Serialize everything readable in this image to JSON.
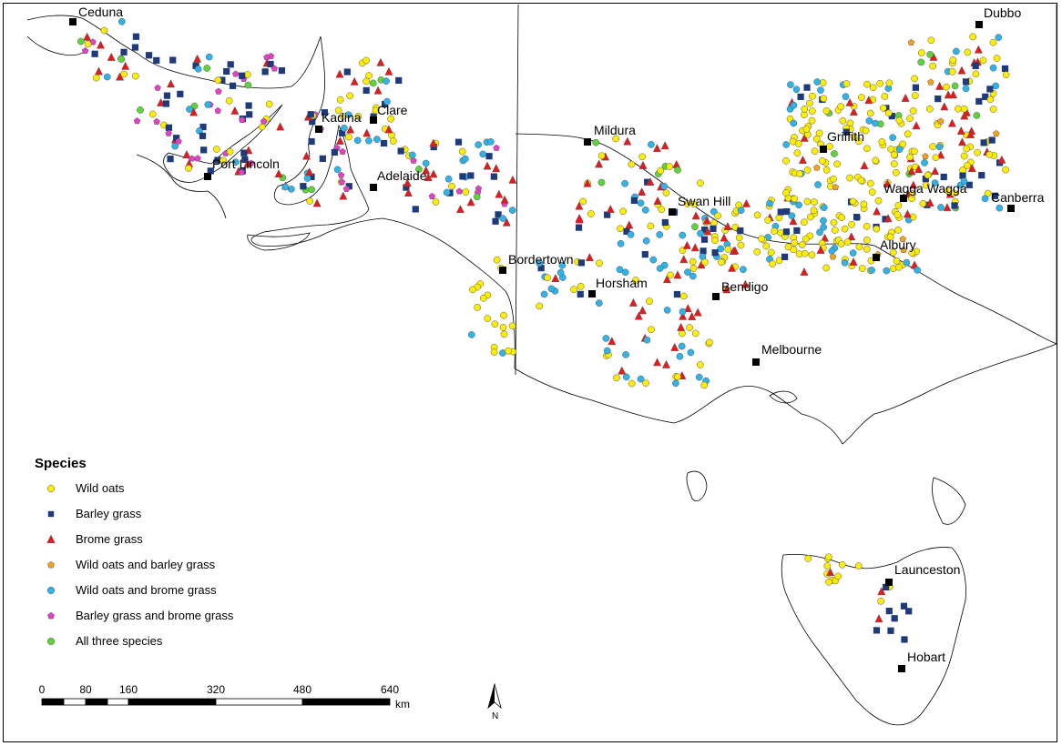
{
  "legend": {
    "title": "Species",
    "items": [
      {
        "key": "wild_oats",
        "label": "Wild oats",
        "shape": "circle",
        "color": "#ffee00"
      },
      {
        "key": "barley",
        "label": "Barley grass",
        "shape": "square",
        "color": "#1f3a7a"
      },
      {
        "key": "brome",
        "label": "Brome grass",
        "shape": "triangle",
        "color": "#e8191b"
      },
      {
        "key": "oats_barley",
        "label": "Wild oats and barley grass",
        "shape": "pentagon",
        "color": "#f7a21b"
      },
      {
        "key": "oats_brome",
        "label": "Wild oats and brome grass",
        "shape": "circle",
        "color": "#2fb3e8"
      },
      {
        "key": "barley_brome",
        "label": "Barley grass and brome grass",
        "shape": "pentagon",
        "color": "#e83fc8"
      },
      {
        "key": "all",
        "label": "All three species",
        "shape": "circle",
        "color": "#5dd43a"
      }
    ]
  },
  "cities": [
    {
      "name": "Ceduna"
    },
    {
      "name": "Kadina"
    },
    {
      "name": "Clare"
    },
    {
      "name": "Port Lincoln"
    },
    {
      "name": "Adelaide"
    },
    {
      "name": "Mildura"
    },
    {
      "name": "Swan Hill"
    },
    {
      "name": "Bordertown"
    },
    {
      "name": "Horsham"
    },
    {
      "name": "Bendigo"
    },
    {
      "name": "Melbourne"
    },
    {
      "name": "Griffith"
    },
    {
      "name": "Wagga Wagga"
    },
    {
      "name": "Albury"
    },
    {
      "name": "Canberra"
    },
    {
      "name": "Dubbo"
    },
    {
      "name": "Launceston"
    },
    {
      "name": "Hobart"
    }
  ],
  "scale_bar": {
    "ticks": [
      "0",
      "80",
      "160",
      "320",
      "480",
      "640"
    ],
    "unit": "km"
  },
  "north_arrow": {
    "label": "N"
  }
}
